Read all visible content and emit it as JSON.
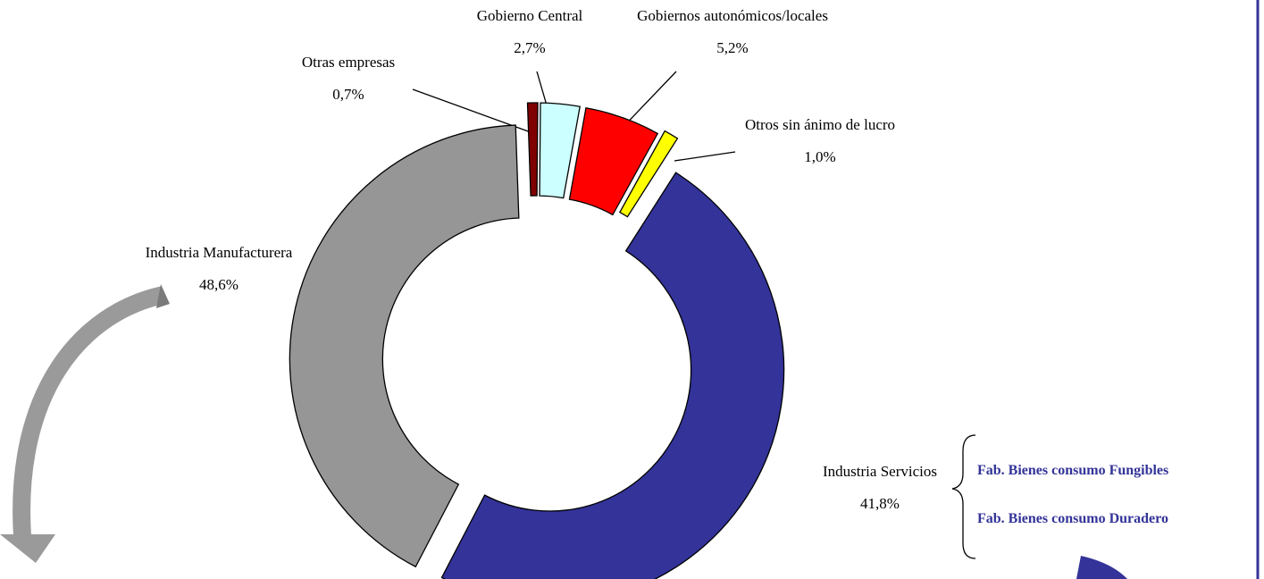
{
  "chart_data": {
    "type": "donut",
    "categories": [
      "Otras empresas",
      "Gobierno Central",
      "Gobiernos autonómicos/locales",
      "Otros sin ánimo de lucro",
      "Industria Manufacturera",
      "Industria Servicios"
    ],
    "values": [
      0.7,
      2.7,
      5.2,
      1.0,
      48.6,
      41.8
    ],
    "value_labels": [
      "0,7%",
      "2,7%",
      "5,2%",
      "1,0%",
      "48,6%",
      "41,8%"
    ],
    "colors": [
      "#7f0000",
      "#ccffff",
      "#ff0000",
      "#ffff00",
      "#333399",
      "#969696"
    ],
    "annotations": [
      "Fab. Bienes consumo Fungibles",
      "Fab. Bienes consumo Duradero"
    ]
  }
}
